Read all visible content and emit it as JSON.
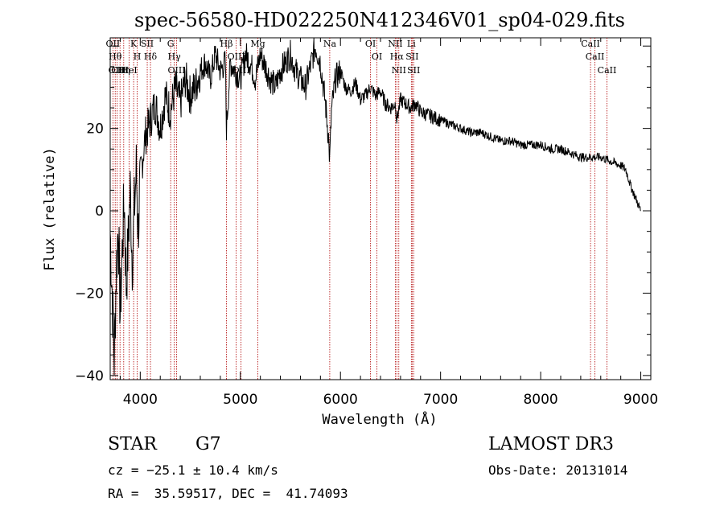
{
  "chart_data": {
    "type": "line",
    "title": "spec-56580-HD022250N412346V01_sp04-029.fits",
    "xlabel": "Wavelength (Å)",
    "ylabel": "Flux (relative)",
    "xlim": [
      3700,
      9100
    ],
    "ylim": [
      -41,
      42
    ],
    "xticks": [
      4000,
      5000,
      6000,
      7000,
      8000,
      9000
    ],
    "yticks": [
      -40,
      -20,
      0,
      20
    ],
    "grid": false,
    "series": [
      {
        "name": "flux",
        "color": "#000000",
        "x": [
          3700,
          3720,
          3740,
          3760,
          3780,
          3800,
          3820,
          3840,
          3860,
          3880,
          3900,
          3920,
          3940,
          3960,
          3980,
          4000,
          4050,
          4100,
          4150,
          4200,
          4250,
          4300,
          4350,
          4400,
          4450,
          4500,
          4550,
          4600,
          4650,
          4700,
          4750,
          4800,
          4850,
          4861,
          4900,
          4950,
          5000,
          5050,
          5100,
          5150,
          5200,
          5250,
          5300,
          5350,
          5400,
          5450,
          5500,
          5550,
          5600,
          5650,
          5700,
          5750,
          5800,
          5850,
          5880,
          5893,
          5910,
          5950,
          6000,
          6050,
          6100,
          6150,
          6200,
          6250,
          6300,
          6350,
          6400,
          6450,
          6500,
          6550,
          6563,
          6600,
          6650,
          6700,
          6750,
          6800,
          6900,
          7000,
          7100,
          7200,
          7300,
          7400,
          7500,
          7600,
          7700,
          7800,
          7900,
          8000,
          8100,
          8200,
          8300,
          8400,
          8500,
          8600,
          8700,
          8800,
          8850,
          8900,
          8950,
          9000
        ],
        "values": [
          -5,
          -20,
          -36,
          -15,
          -3,
          -25,
          -10,
          3,
          -18,
          -8,
          5,
          -12,
          0,
          10,
          -5,
          8,
          18,
          22,
          26,
          20,
          28,
          24,
          30,
          26,
          32,
          28,
          30,
          34,
          36,
          32,
          38,
          34,
          36,
          20,
          36,
          34,
          32,
          38,
          36,
          32,
          38,
          35,
          32,
          30,
          34,
          36,
          38,
          34,
          32,
          30,
          35,
          40,
          36,
          26,
          18,
          12,
          24,
          32,
          34,
          30,
          29,
          31,
          27,
          28,
          30,
          28,
          29,
          26,
          25,
          26,
          22,
          27,
          26,
          25,
          26,
          24,
          23,
          22,
          21,
          20,
          19,
          19,
          18,
          17,
          17,
          16,
          16,
          16,
          15,
          15,
          14,
          13,
          13,
          13,
          12,
          11,
          10,
          6,
          3,
          0
        ]
      }
    ],
    "lines": [
      {
        "wl": 3727,
        "label": "OII"
      },
      {
        "wl": 3750,
        "label": "Hθ"
      },
      {
        "wl": 3770,
        "label": "OIII"
      },
      {
        "wl": 3798,
        "label": "OIII"
      },
      {
        "wl": 3835,
        "label": "Hη"
      },
      {
        "wl": 3889,
        "label": "HeI"
      },
      {
        "wl": 3934,
        "label": "K"
      },
      {
        "wl": 3970,
        "label": "H"
      },
      {
        "wl": 4070,
        "label": "SII"
      },
      {
        "wl": 4102,
        "label": "Hδ"
      },
      {
        "wl": 4304,
        "label": "G"
      },
      {
        "wl": 4340,
        "label": "Hγ"
      },
      {
        "wl": 4363,
        "label": "OIII"
      },
      {
        "wl": 4861,
        "label": "Hβ"
      },
      {
        "wl": 4959,
        "label": "OIII"
      },
      {
        "wl": 5007,
        "label": "OIII"
      },
      {
        "wl": 5175,
        "label": "Mg"
      },
      {
        "wl": 5893,
        "label": "Na"
      },
      {
        "wl": 6300,
        "label": "OI"
      },
      {
        "wl": 6364,
        "label": "OI"
      },
      {
        "wl": 6548,
        "label": "NII"
      },
      {
        "wl": 6563,
        "label": "Hα"
      },
      {
        "wl": 6583,
        "label": "NII"
      },
      {
        "wl": 6708,
        "label": "Li"
      },
      {
        "wl": 6716,
        "label": "SII"
      },
      {
        "wl": 6731,
        "label": "SII"
      },
      {
        "wl": 8498,
        "label": "CaII"
      },
      {
        "wl": 8542,
        "label": "CaII"
      },
      {
        "wl": 8662,
        "label": "CaII"
      }
    ]
  },
  "info": {
    "object_class": "STAR",
    "subclass": "G7",
    "survey": "LAMOST DR3",
    "cz": "cz = −25.1 ± 10.4 km/s",
    "obs_date": "Obs-Date: 20131014",
    "coords": "RA =  35.59517, DEC =  41.74093"
  },
  "colors": {
    "line_marker": "#b00000",
    "axis": "#000000",
    "background": "#ffffff"
  }
}
